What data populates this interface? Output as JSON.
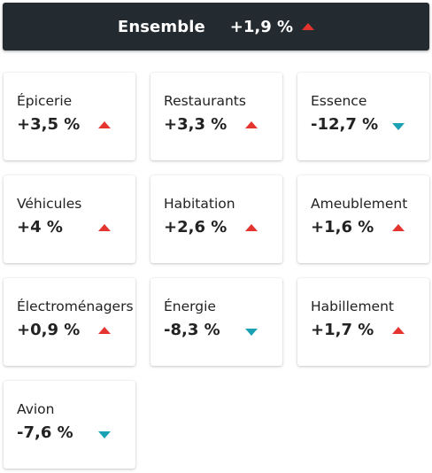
{
  "summary": {
    "label": "Ensemble",
    "value": "+1,9 %",
    "trend": "up"
  },
  "colors": {
    "up": "#e3342f",
    "down": "#1aa1b3",
    "header_bg": "#242b30"
  },
  "categories": [
    {
      "name": "Épicerie",
      "value": "+3,5 %",
      "trend": "up"
    },
    {
      "name": "Restaurants",
      "value": "+3,3 %",
      "trend": "up"
    },
    {
      "name": "Essence",
      "value": "-12,7 %",
      "trend": "down"
    },
    {
      "name": "Véhicules",
      "value": "+4 %",
      "trend": "up"
    },
    {
      "name": "Habitation",
      "value": "+2,6 %",
      "trend": "up"
    },
    {
      "name": "Ameublement",
      "value": "+1,6 %",
      "trend": "up"
    },
    {
      "name": "Électroménagers",
      "value": "+0,9 %",
      "trend": "up"
    },
    {
      "name": "Énergie",
      "value": "-8,3 %",
      "trend": "down"
    },
    {
      "name": "Habillement",
      "value": "+1,7 %",
      "trend": "up"
    },
    {
      "name": "Avion",
      "value": "-7,6 %",
      "trend": "down"
    }
  ]
}
